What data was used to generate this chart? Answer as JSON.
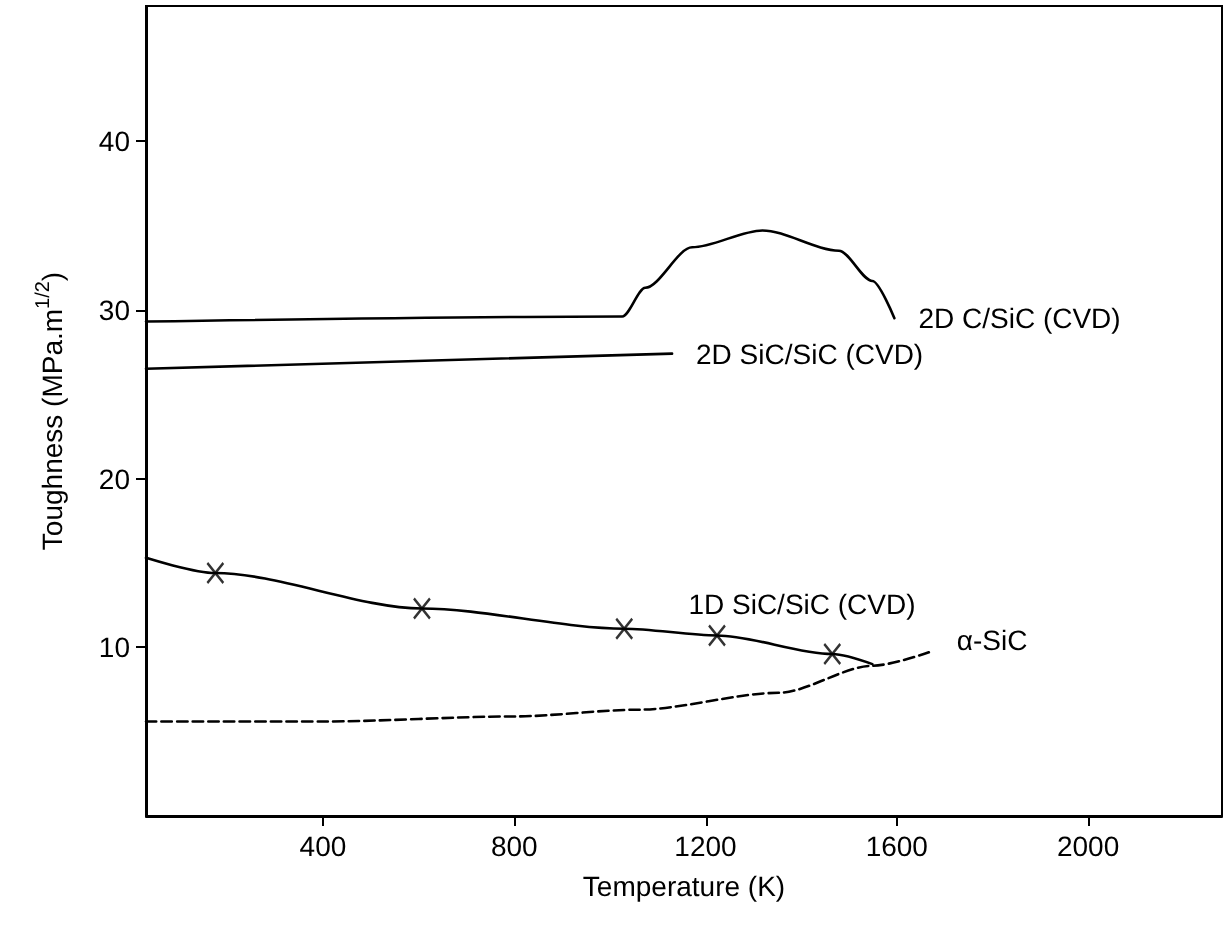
{
  "chart_data": {
    "type": "line",
    "xlabel": "Temperature (K)",
    "ylabel": "Toughness (MPa.m$^{1/2}$)",
    "xlim": [
      30,
      2280
    ],
    "xticks": [
      400,
      800,
      1200,
      1600,
      2000
    ],
    "ylim": [
      0,
      48
    ],
    "yticks": [
      10,
      20,
      30,
      40
    ],
    "grid": false,
    "legend": false,
    "marker": "none",
    "line_style": "solid",
    "series": [
      {
        "name": "2D C/SiC (CVD)",
        "color": "#000000",
        "x": [
          30,
          1026,
          1074,
          1172,
          1319,
          1479,
          1549,
          1595
        ],
        "values": [
          29.3,
          29.6,
          31.3,
          33.7,
          34.7,
          33.5,
          31.7,
          29.5
        ]
      },
      {
        "name": "2D SiC/SiC (CVD)",
        "color": "#000000",
        "x": [
          30,
          1130
        ],
        "values": [
          26.5,
          27.4
        ]
      },
      {
        "name": "1D SiC/SiC (CVD)",
        "color": "#000000",
        "x": [
          30,
          175,
          607,
          1030,
          1224,
          1465,
          1549
        ],
        "values": [
          15.3,
          14.4,
          12.3,
          11.1,
          10.7,
          9.6,
          9.0
        ]
      },
      {
        "type": "scatter",
        "marker": "cross",
        "color": "#000000",
        "x": [
          175,
          607,
          1030,
          1224,
          1465
        ],
        "values": [
          14.4,
          12.3,
          11.1,
          10.7,
          9.6
        ]
      },
      {
        "name": "α-SiC",
        "color": "#000000",
        "line_style": "dashed",
        "x": [
          30,
          400,
          800,
          1060,
          1353,
          1549,
          1667
        ],
        "values": [
          5.6,
          5.6,
          5.9,
          6.3,
          7.3,
          8.9,
          9.7
        ]
      }
    ]
  }
}
